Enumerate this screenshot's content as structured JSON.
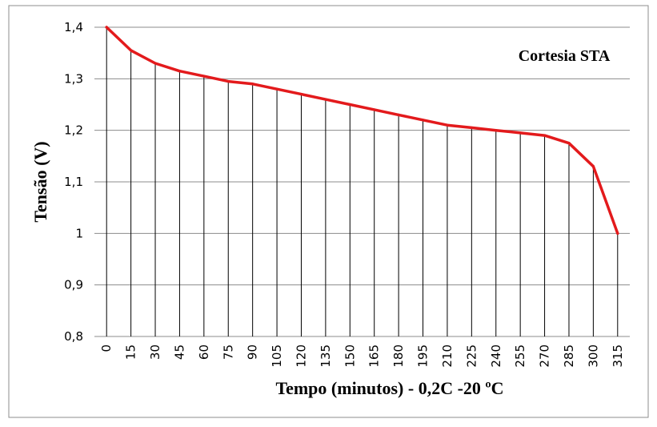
{
  "chart_data": {
    "type": "line",
    "title": "",
    "xlabel": "Tempo (minutos) - 0,2C -20 ºC",
    "ylabel": "Tensão (V)",
    "annotation": "Cortesia STA",
    "categories": [
      "0",
      "15",
      "30",
      "45",
      "60",
      "75",
      "90",
      "105",
      "120",
      "135",
      "150",
      "165",
      "180",
      "195",
      "210",
      "225",
      "240",
      "255",
      "270",
      "285",
      "300",
      "315"
    ],
    "y_ticks": [
      "0,8",
      "0,9",
      "1",
      "1,1",
      "1,2",
      "1,3",
      "1,4"
    ],
    "y_tick_values": [
      0.8,
      0.9,
      1.0,
      1.1,
      1.2,
      1.3,
      1.4
    ],
    "ylim": [
      0.8,
      1.4
    ],
    "grid": "horizontal major gridlines; vertical drop lines at each category",
    "legend": "none",
    "series": [
      {
        "color": "#e31a1c",
        "values": [
          1.4,
          1.355,
          1.33,
          1.315,
          1.305,
          1.295,
          1.29,
          1.28,
          1.27,
          1.26,
          1.25,
          1.24,
          1.23,
          1.22,
          1.21,
          1.205,
          1.2,
          1.195,
          1.19,
          1.175,
          1.13,
          1.0
        ]
      }
    ]
  }
}
